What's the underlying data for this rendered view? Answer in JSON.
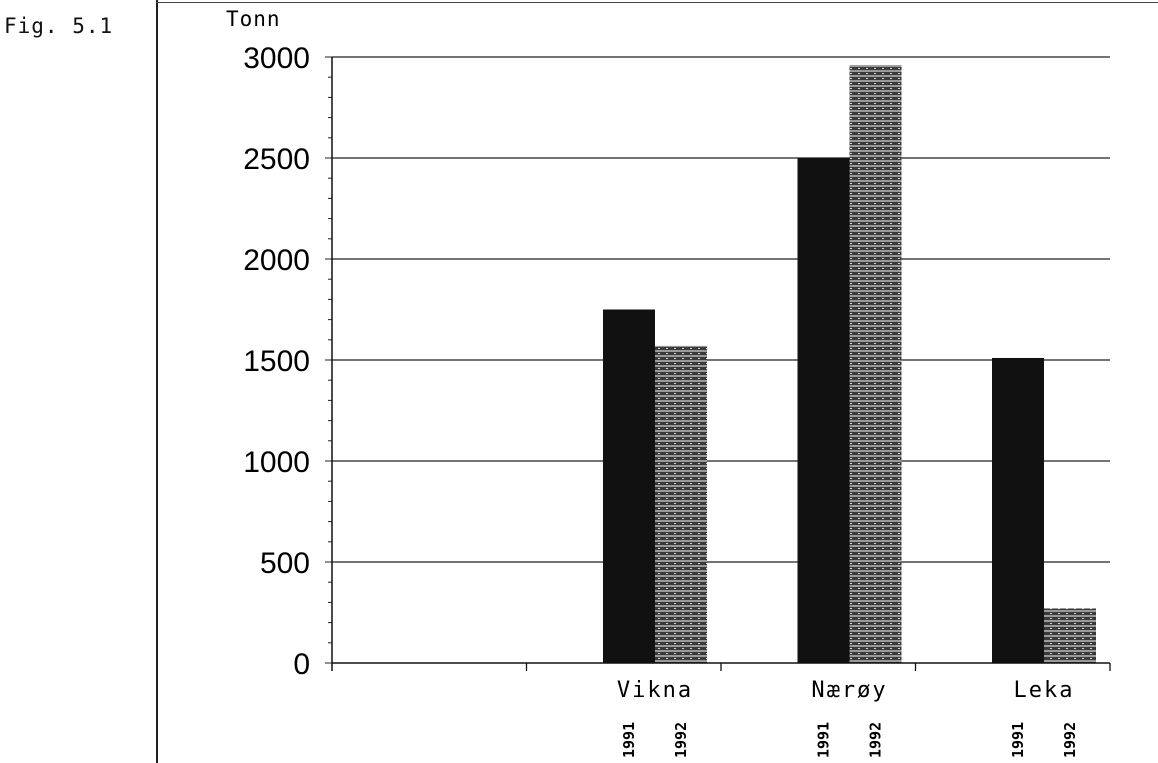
{
  "figure_label": "Fig. 5.1",
  "chart_data": {
    "type": "bar",
    "ylabel": "Tonn",
    "ylim": [
      0,
      3000
    ],
    "yticks": [
      0,
      500,
      1000,
      1500,
      2000,
      2500,
      3000
    ],
    "grid": true,
    "categories": [
      "",
      "Vikna",
      "Nærøy",
      "Leka"
    ],
    "series": [
      {
        "name": "1991",
        "values": [
          null,
          1750,
          2500,
          1510
        ],
        "color": "#111111"
      },
      {
        "name": "1992",
        "values": [
          null,
          1570,
          2960,
          270
        ],
        "color": "#555555",
        "pattern": "striped"
      }
    ],
    "series_year_labels": [
      "1991",
      "1992"
    ]
  }
}
